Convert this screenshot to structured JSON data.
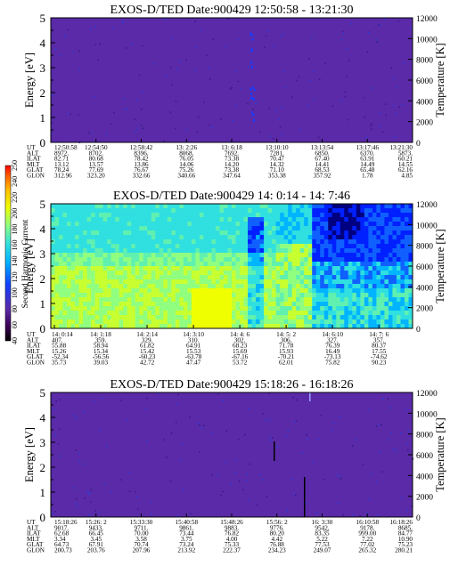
{
  "chart_data": [
    {
      "type": "heatmap",
      "title": "EXOS-D/TED  Date:900429  12:50:58 - 13:21:30",
      "ylabel": "Energy [eV]",
      "ylabel_right": "Temperature [K]",
      "ylim": [
        0,
        5
      ],
      "ylim_right": [
        0,
        12000
      ],
      "yticks": [
        "0",
        "1",
        "2",
        "3",
        "4",
        "5"
      ],
      "yticks_right": [
        "0",
        "2000",
        "4000",
        "6000",
        "8000",
        "10000",
        "12000"
      ],
      "background_color": "#5a2aa8",
      "ephemeris_labels": [
        "UT",
        "ALT",
        "ILAT",
        "MLT",
        "GLAT",
        "GLON"
      ],
      "ephemeris": [
        [
          "12:50:58",
          "12:54:50",
          "12:58:42",
          "13: 2:26",
          "13: 6:18",
          "13:10:10",
          "13:13:54",
          "13:17:46",
          "13:21:30"
        ],
        [
          "8972.",
          "8702.",
          "8396.",
          "8068.",
          "7692.",
          "7281.",
          "6850.",
          "6370.",
          "5873."
        ],
        [
          "82.71",
          "80.68",
          "78.42",
          "76.05",
          "73.38",
          "70.47",
          "67.40",
          "63.91",
          "60.21"
        ],
        [
          "13.12",
          "13.57",
          "13.86",
          "14.06",
          "14.20",
          "14.32",
          "14.41",
          "14.49",
          "14.55"
        ],
        [
          "78.24",
          "77.69",
          "76.67",
          "75.26",
          "73.38",
          "71.10",
          "68.53",
          "65.48",
          "62.16"
        ],
        [
          "312.96",
          "323.20",
          "332.66",
          "340.66",
          "347.64",
          "353.38",
          "357.92",
          "1.78",
          "4.85"
        ]
      ]
    },
    {
      "type": "heatmap",
      "title": "EXOS-D/TED  Date:900429  14: 0:14 - 14: 7:46",
      "ylabel": "Energy [eV]",
      "ylabel_right": "Temperature [K]",
      "ylim": [
        0,
        5
      ],
      "ylim_right": [
        0,
        12000
      ],
      "yticks": [
        "0",
        "1",
        "2",
        "3",
        "4",
        "5"
      ],
      "yticks_right": [
        "0",
        "2000",
        "4000",
        "6000",
        "8000",
        "10000",
        "12000"
      ],
      "colorbar": {
        "label": "Second Harmonic Current",
        "ticks": [
          "40",
          "60",
          "80",
          "100",
          "120",
          "140",
          "160",
          "180",
          "200",
          "220",
          "240",
          "250"
        ]
      },
      "ephemeris_labels": [
        "UT",
        "ALT",
        "ILAT",
        "MLT",
        "GLAT",
        "GLON"
      ],
      "ephemeris": [
        [
          "14: 0:14",
          "14: 1:18",
          "14: 2:14",
          "14: 3:10",
          "14: 4: 6",
          "14: 5: 2",
          "14: 6:10",
          "14: 7: 6"
        ],
        [
          "407.",
          "359.",
          "329.",
          "310.",
          "302.",
          "306.",
          "327.",
          "357."
        ],
        [
          "55.88",
          "58.94",
          "61.82",
          "64.91",
          "68.23",
          "71.78",
          "76.39",
          "80.37"
        ],
        [
          "15.26",
          "15.34",
          "15.42",
          "15.53",
          "15.69",
          "15.93",
          "16.49",
          "17.55"
        ],
        [
          "-52.34",
          "-56.56",
          "-60.23",
          "-63.78",
          "-67.16",
          "-70.21",
          "-73.13",
          "-74.62"
        ],
        [
          "35.73",
          "39.03",
          "42.72",
          "47.47",
          "53.72",
          "62.01",
          "75.82",
          "90.23"
        ]
      ],
      "regions_note": ""
    },
    {
      "type": "heatmap",
      "title": "EXOS-D/TED  Date:900429  15:18:26 - 16:18:26",
      "ylabel": "Energy [eV]",
      "ylabel_right": "Temperature [K]",
      "ylim": [
        0,
        5
      ],
      "ylim_right": [
        0,
        12000
      ],
      "yticks": [
        "0",
        "1",
        "2",
        "3",
        "4",
        "5"
      ],
      "yticks_right": [
        "0",
        "2000",
        "4000",
        "6000",
        "8000",
        "10000",
        "12000"
      ],
      "background_color": "#5a2aa8",
      "ephemeris_labels": [
        "UT",
        "ALT",
        "ILAT",
        "MLT",
        "GLAT",
        "GLON"
      ],
      "ephemeris": [
        [
          "15:18:26",
          "15:26: 2",
          "15:33:30",
          "15:40:58",
          "15:48:26",
          "15:56: 2",
          "16: 3:30",
          "16:10:58",
          "16:18:26"
        ],
        [
          "9017.",
          "9433.",
          "9711.",
          "9861.",
          "9883.",
          "9776.",
          "9542.",
          "9178.",
          "8685."
        ],
        [
          "62.68",
          "66.45",
          "70.00",
          "73.44",
          "76.82",
          "80.20",
          "83.35",
          "999.00",
          "84.77"
        ],
        [
          "3.34",
          "3.45",
          "3.58",
          "3.75",
          "4.00",
          "4.42",
          "5.22",
          "7.22",
          "10.90"
        ],
        [
          "64.73",
          "67.91",
          "70.74",
          "73.24",
          "75.33",
          "76.88",
          "77.53",
          "77.02",
          "75.23"
        ],
        [
          "200.73",
          "203.76",
          "207.96",
          "213.92",
          "222.37",
          "234.23",
          "249.07",
          "265.32",
          "280.21"
        ]
      ]
    }
  ]
}
